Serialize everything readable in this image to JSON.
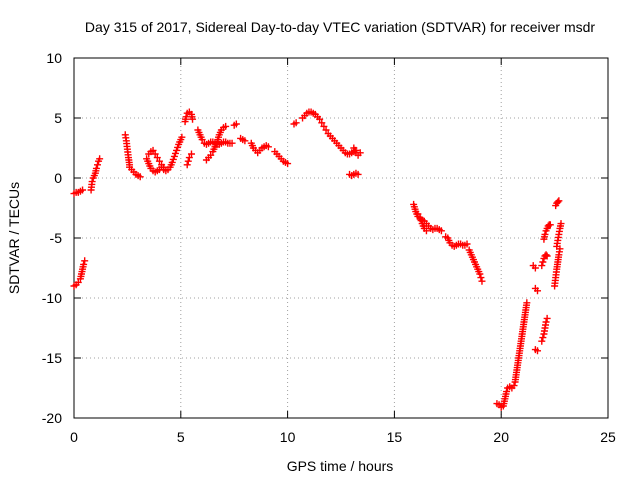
{
  "chart_data": {
    "type": "scatter",
    "title": "Day 315 of 2017, Sidereal Day-to-day VTEC variation (SDTVAR) for receiver msdr",
    "xlabel": "GPS time / hours",
    "ylabel": "SDTVAR / TECUs",
    "xlim": [
      0,
      25
    ],
    "ylim": [
      -20,
      10
    ],
    "xticks": [
      0,
      5,
      10,
      15,
      20,
      25
    ],
    "yticks": [
      -20,
      -15,
      -10,
      -5,
      0,
      5,
      10
    ],
    "xtick_labels": [
      "0",
      "5",
      "10",
      "15",
      "20",
      "25"
    ],
    "ytick_labels": [
      "-20",
      "-15",
      "-10",
      "-5",
      "0",
      "5",
      "10"
    ],
    "grid": true,
    "marker": "plus",
    "color": "#ff0000",
    "series": [
      {
        "name": "SDTVAR",
        "segments": [
          [
            [
              0.0,
              -1.3
            ],
            [
              0.1,
              -1.2
            ],
            [
              0.2,
              -1.2
            ],
            [
              0.3,
              -1.1
            ],
            [
              0.4,
              -1.0
            ]
          ],
          [
            [
              0.0,
              -9.0
            ],
            [
              0.1,
              -8.9
            ],
            [
              0.2,
              -8.7
            ],
            [
              0.3,
              -8.4
            ],
            [
              0.35,
              -8.0
            ],
            [
              0.4,
              -7.6
            ],
            [
              0.45,
              -7.2
            ],
            [
              0.5,
              -6.9
            ]
          ],
          [
            [
              0.8,
              -1.0
            ],
            [
              0.85,
              -0.3
            ],
            [
              0.9,
              0.0
            ],
            [
              1.0,
              0.4
            ],
            [
              1.05,
              0.8
            ],
            [
              1.1,
              1.1
            ],
            [
              1.15,
              1.4
            ],
            [
              1.2,
              1.6
            ]
          ],
          [
            [
              2.4,
              3.6
            ],
            [
              2.45,
              3.1
            ],
            [
              2.5,
              2.4
            ],
            [
              2.55,
              1.7
            ],
            [
              2.6,
              1.1
            ]
          ],
          [
            [
              2.6,
              0.9
            ],
            [
              2.7,
              0.7
            ],
            [
              2.8,
              0.5
            ],
            [
              2.9,
              0.3
            ],
            [
              3.0,
              0.2
            ],
            [
              3.1,
              0.1
            ]
          ],
          [
            [
              3.4,
              1.6
            ],
            [
              3.5,
              1.2
            ],
            [
              3.6,
              0.8
            ],
            [
              3.7,
              0.6
            ],
            [
              3.8,
              0.5
            ],
            [
              3.9,
              0.6
            ],
            [
              4.0,
              0.7
            ],
            [
              4.1,
              0.9
            ],
            [
              4.2,
              0.7
            ],
            [
              4.3,
              0.6
            ],
            [
              4.4,
              0.7
            ],
            [
              4.5,
              0.9
            ],
            [
              4.6,
              1.3
            ],
            [
              4.7,
              1.8
            ],
            [
              4.8,
              2.3
            ],
            [
              4.9,
              2.8
            ],
            [
              5.0,
              3.2
            ],
            [
              5.05,
              3.4
            ]
          ],
          [
            [
              3.5,
              2.0
            ],
            [
              3.6,
              2.2
            ],
            [
              3.7,
              2.3
            ],
            [
              3.8,
              2.0
            ],
            [
              3.9,
              1.7
            ],
            [
              4.0,
              1.4
            ],
            [
              4.1,
              1.1
            ],
            [
              4.2,
              0.9
            ]
          ],
          [
            [
              5.2,
              4.7
            ],
            [
              5.25,
              5.1
            ],
            [
              5.3,
              5.4
            ],
            [
              5.4,
              5.5
            ],
            [
              5.5,
              5.3
            ],
            [
              5.55,
              4.9
            ]
          ],
          [
            [
              5.3,
              1.1
            ],
            [
              5.35,
              1.4
            ],
            [
              5.4,
              1.7
            ],
            [
              5.5,
              2.0
            ]
          ],
          [
            [
              5.8,
              4.0
            ],
            [
              5.9,
              3.6
            ],
            [
              6.0,
              3.2
            ],
            [
              6.1,
              2.9
            ],
            [
              6.2,
              2.8
            ],
            [
              6.3,
              2.9
            ],
            [
              6.4,
              3.0
            ],
            [
              6.5,
              3.0
            ],
            [
              6.6,
              2.9
            ],
            [
              6.7,
              2.8
            ],
            [
              6.8,
              2.8
            ],
            [
              6.9,
              2.9
            ],
            [
              7.0,
              3.0
            ],
            [
              7.1,
              3.0
            ],
            [
              7.2,
              2.9
            ],
            [
              7.3,
              2.9
            ],
            [
              7.4,
              2.9
            ]
          ],
          [
            [
              6.2,
              1.5
            ],
            [
              6.3,
              1.7
            ],
            [
              6.4,
              1.9
            ],
            [
              6.5,
              2.2
            ],
            [
              6.6,
              2.6
            ],
            [
              6.7,
              3.0
            ],
            [
              6.8,
              3.6
            ],
            [
              6.9,
              4.0
            ],
            [
              7.0,
              4.2
            ],
            [
              7.1,
              4.3
            ]
          ],
          [
            [
              7.5,
              4.4
            ],
            [
              7.6,
              4.5
            ]
          ],
          [
            [
              7.8,
              3.3
            ],
            [
              8.0,
              3.1
            ]
          ],
          [
            [
              8.3,
              2.9
            ],
            [
              8.4,
              2.5
            ],
            [
              8.5,
              2.3
            ],
            [
              8.6,
              2.1
            ],
            [
              8.7,
              2.3
            ],
            [
              8.8,
              2.5
            ],
            [
              8.9,
              2.6
            ],
            [
              9.0,
              2.7
            ],
            [
              9.1,
              2.6
            ]
          ],
          [
            [
              9.4,
              2.2
            ],
            [
              9.5,
              2.0
            ],
            [
              9.6,
              1.8
            ],
            [
              9.7,
              1.6
            ],
            [
              9.8,
              1.4
            ],
            [
              9.9,
              1.3
            ],
            [
              10.0,
              1.2
            ]
          ],
          [
            [
              10.3,
              4.5
            ],
            [
              10.4,
              4.6
            ]
          ],
          [
            [
              10.7,
              5.0
            ],
            [
              10.8,
              5.2
            ],
            [
              10.9,
              5.4
            ],
            [
              11.0,
              5.5
            ],
            [
              11.1,
              5.5
            ],
            [
              11.2,
              5.4
            ],
            [
              11.3,
              5.3
            ],
            [
              11.4,
              5.1
            ],
            [
              11.5,
              4.9
            ],
            [
              11.6,
              4.6
            ],
            [
              11.7,
              4.3
            ],
            [
              11.8,
              4.0
            ],
            [
              11.9,
              3.7
            ],
            [
              12.0,
              3.5
            ],
            [
              12.1,
              3.3
            ],
            [
              12.2,
              3.1
            ],
            [
              12.3,
              2.9
            ],
            [
              12.4,
              2.7
            ],
            [
              12.5,
              2.5
            ],
            [
              12.6,
              2.3
            ],
            [
              12.7,
              2.1
            ],
            [
              12.8,
              2.0
            ],
            [
              12.9,
              2.0
            ],
            [
              13.0,
              2.1
            ],
            [
              13.1,
              2.2
            ],
            [
              13.2,
              2.3
            ]
          ],
          [
            [
              12.9,
              0.3
            ],
            [
              13.0,
              0.2
            ],
            [
              13.1,
              0.3
            ],
            [
              13.2,
              0.4
            ],
            [
              13.3,
              0.3
            ]
          ],
          [
            [
              13.1,
              2.5
            ],
            [
              13.2,
              2.1
            ],
            [
              13.3,
              1.9
            ],
            [
              13.4,
              2.1
            ]
          ],
          [
            [
              15.9,
              -2.2
            ],
            [
              16.0,
              -2.8
            ],
            [
              16.1,
              -3.2
            ],
            [
              16.2,
              -3.4
            ],
            [
              16.3,
              -3.5
            ],
            [
              16.4,
              -3.6
            ],
            [
              16.5,
              -3.8
            ],
            [
              16.6,
              -4.0
            ],
            [
              16.7,
              -4.2
            ],
            [
              16.8,
              -4.3
            ],
            [
              16.9,
              -4.2
            ],
            [
              17.0,
              -4.2
            ],
            [
              17.1,
              -4.3
            ],
            [
              17.2,
              -4.4
            ]
          ],
          [
            [
              16.1,
              -3.0
            ],
            [
              16.2,
              -3.3
            ],
            [
              16.3,
              -3.8
            ],
            [
              16.4,
              -4.2
            ],
            [
              16.5,
              -4.4
            ]
          ],
          [
            [
              17.4,
              -4.9
            ],
            [
              17.5,
              -5.0
            ],
            [
              17.6,
              -5.4
            ],
            [
              17.7,
              -5.6
            ],
            [
              17.8,
              -5.7
            ],
            [
              17.9,
              -5.6
            ],
            [
              18.0,
              -5.5
            ],
            [
              18.1,
              -5.5
            ],
            [
              18.2,
              -5.6
            ],
            [
              18.3,
              -5.6
            ],
            [
              18.4,
              -5.5
            ]
          ],
          [
            [
              18.5,
              -6.0
            ],
            [
              18.6,
              -6.4
            ],
            [
              18.7,
              -6.8
            ],
            [
              18.8,
              -7.2
            ],
            [
              18.9,
              -7.6
            ],
            [
              19.0,
              -8.0
            ],
            [
              19.05,
              -8.3
            ],
            [
              19.1,
              -8.6
            ]
          ],
          [
            [
              19.8,
              -18.8
            ],
            [
              19.9,
              -18.9
            ],
            [
              20.0,
              -19.1
            ],
            [
              20.1,
              -19.0
            ],
            [
              20.15,
              -18.6
            ],
            [
              20.2,
              -18.2
            ],
            [
              20.25,
              -17.8
            ],
            [
              20.3,
              -17.5
            ],
            [
              20.4,
              -17.4
            ],
            [
              20.5,
              -17.5
            ],
            [
              20.6,
              -17.3
            ],
            [
              20.65,
              -17.0
            ],
            [
              20.7,
              -16.4
            ],
            [
              20.75,
              -15.8
            ],
            [
              20.8,
              -15.2
            ],
            [
              20.85,
              -14.6
            ],
            [
              20.9,
              -14.0
            ],
            [
              20.95,
              -13.4
            ],
            [
              21.0,
              -12.8
            ],
            [
              21.05,
              -12.2
            ],
            [
              21.1,
              -11.6
            ],
            [
              21.15,
              -11.0
            ],
            [
              21.2,
              -10.4
            ]
          ],
          [
            [
              21.5,
              -7.3
            ],
            [
              21.6,
              -7.5
            ]
          ],
          [
            [
              21.6,
              -9.2
            ],
            [
              21.7,
              -9.4
            ]
          ],
          [
            [
              21.6,
              -14.3
            ],
            [
              21.7,
              -14.4
            ]
          ],
          [
            [
              21.9,
              -13.6
            ],
            [
              21.95,
              -13.3
            ],
            [
              22.0,
              -13.0
            ],
            [
              22.05,
              -12.5
            ],
            [
              22.1,
              -12.0
            ],
            [
              22.15,
              -11.7
            ]
          ],
          [
            [
              21.9,
              -7.3
            ],
            [
              21.95,
              -7.0
            ],
            [
              22.0,
              -6.7
            ],
            [
              22.05,
              -6.5
            ],
            [
              22.1,
              -6.4
            ],
            [
              22.15,
              -6.5
            ]
          ],
          [
            [
              22.0,
              -5.1
            ],
            [
              22.05,
              -4.7
            ],
            [
              22.1,
              -4.4
            ],
            [
              22.15,
              -4.2
            ],
            [
              22.2,
              -4.0
            ],
            [
              22.25,
              -3.9
            ],
            [
              22.3,
              -3.9
            ]
          ],
          [
            [
              22.5,
              -9.0
            ],
            [
              22.55,
              -8.3
            ],
            [
              22.6,
              -7.6
            ],
            [
              22.65,
              -7.0
            ],
            [
              22.7,
              -6.4
            ],
            [
              22.75,
              -5.9
            ]
          ],
          [
            [
              22.6,
              -5.7
            ],
            [
              22.65,
              -5.2
            ],
            [
              22.7,
              -4.7
            ],
            [
              22.75,
              -4.2
            ],
            [
              22.8,
              -3.8
            ]
          ],
          [
            [
              22.55,
              -2.3
            ],
            [
              22.6,
              -2.1
            ],
            [
              22.65,
              -2.0
            ],
            [
              22.7,
              -1.9
            ]
          ]
        ]
      }
    ]
  }
}
